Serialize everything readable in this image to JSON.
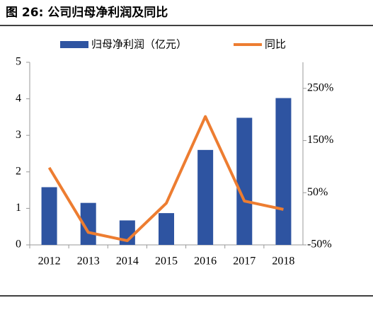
{
  "chart_data": {
    "type": "bar-line",
    "title": "图 26: 公司归母净利润及同比",
    "categories": [
      "2012",
      "2013",
      "2014",
      "2015",
      "2016",
      "2017",
      "2018"
    ],
    "series": [
      {
        "name": "归母净利润（亿元）",
        "color": "#2e54a1",
        "type": "bar",
        "values": [
          1.58,
          1.15,
          0.67,
          0.87,
          2.6,
          3.48,
          4.02
        ]
      },
      {
        "name": "同比",
        "color": "#ed7d31",
        "type": "line",
        "axis": "y2",
        "values": [
          98,
          -26,
          -42,
          30,
          196,
          34,
          18
        ]
      }
    ],
    "ylim": [
      0,
      5
    ],
    "yticks": [
      0,
      1,
      2,
      3,
      4,
      5
    ],
    "y2lim": [
      -50,
      300
    ],
    "y2ticks": [
      {
        "value": -50,
        "label": "-50%"
      },
      {
        "value": 50,
        "label": "50%"
      },
      {
        "value": 150,
        "label": "150%"
      },
      {
        "value": 250,
        "label": "250%"
      }
    ],
    "legend": "top"
  }
}
